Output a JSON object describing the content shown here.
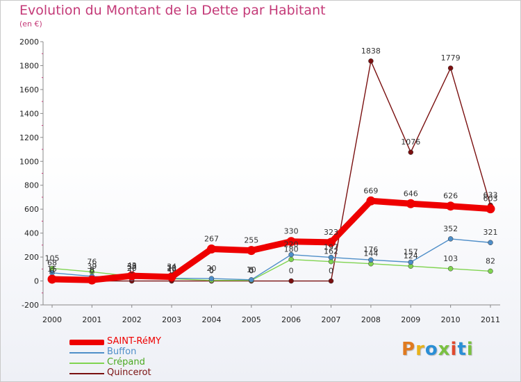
{
  "chart_data": {
    "type": "line",
    "title": "Evolution du Montant de la Dette par Habitant",
    "subtitle": "(en €)",
    "xlabel": "",
    "ylabel": "",
    "ylim": [
      -200,
      2000
    ],
    "yticks": [
      -200,
      0,
      200,
      400,
      600,
      800,
      1000,
      1200,
      1400,
      1600,
      1800,
      2000
    ],
    "categories": [
      "2000",
      "2001",
      "2002",
      "2003",
      "2004",
      "2005",
      "2006",
      "2007",
      "2008",
      "2009",
      "2010",
      "2011"
    ],
    "grid": false,
    "legend_position": "bottom-left",
    "series": [
      {
        "name": "SAINT-RéMY",
        "color": "#ee0000",
        "values": [
          15,
          8,
          43,
          34,
          267,
          255,
          330,
          323,
          669,
          646,
          626,
          603
        ]
      },
      {
        "name": "Buffon",
        "color": "#4e8ec8",
        "values": [
          68,
          39,
          20,
          23,
          20,
          10,
          220,
          197,
          176,
          157,
          352,
          321
        ]
      },
      {
        "name": "Crépand",
        "color": "#80d450",
        "values": [
          105,
          76,
          39,
          18,
          5,
          5,
          180,
          162,
          144,
          124,
          103,
          82
        ]
      },
      {
        "name": "Quincerot",
        "color": "#7a1010",
        "values": [
          0,
          0,
          0,
          0,
          0,
          0,
          0,
          0,
          1838,
          1076,
          1779,
          633
        ]
      }
    ],
    "point_labels": [
      {
        "series": 0,
        "values": [
          "15",
          "8",
          "43",
          "34",
          "267",
          "255",
          "330",
          "323",
          "669",
          "646",
          "626",
          "603"
        ]
      },
      {
        "series": 1,
        "values": [
          "68",
          "39",
          "20",
          "23",
          "20",
          "10",
          "220",
          "197",
          "176",
          "157",
          "352",
          "321"
        ]
      },
      {
        "series": 2,
        "values": [
          "105",
          "76",
          "39",
          "18",
          "5",
          "5",
          "180",
          "162",
          "144",
          "124",
          "103",
          "82"
        ]
      },
      {
        "series": 3,
        "values": [
          "0",
          "0",
          "0",
          "0",
          "0",
          "0",
          "0",
          "0",
          "1838",
          "1076",
          "1779",
          "633"
        ]
      }
    ]
  },
  "logo": {
    "text": "Proxiti",
    "colors": [
      "#e07a1f",
      "#e8b21a",
      "#2a8fd6",
      "#7ac141",
      "#e0492e",
      "#2a8fd6",
      "#7ac141"
    ]
  }
}
